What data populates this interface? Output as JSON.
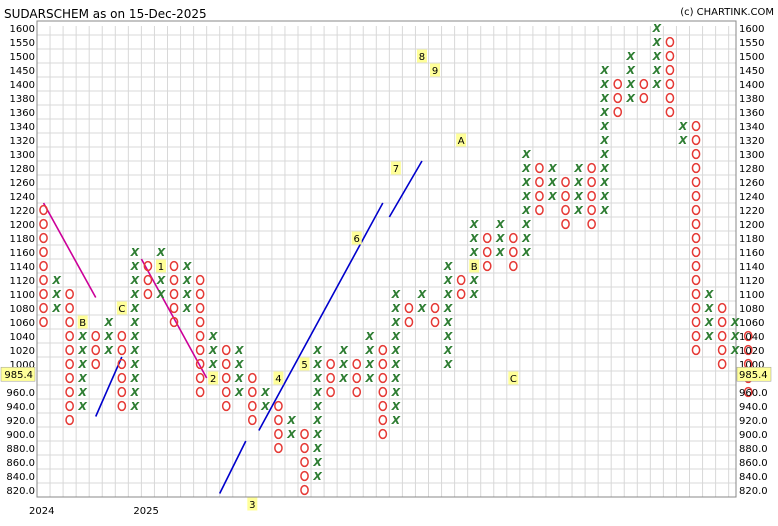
{
  "title": "SUDARSCHEM as on 15-Dec-2025",
  "credit": "(c) CHARTINK.COM",
  "chart_data": {
    "type": "point-and-figure",
    "grid": true,
    "y_levels": [
      820,
      840,
      860,
      880,
      900,
      920,
      940,
      960,
      980,
      1000,
      1020,
      1040,
      1060,
      1080,
      1100,
      1120,
      1140,
      1160,
      1180,
      1200,
      1220,
      1240,
      1260,
      1280,
      1300,
      1320,
      1340,
      1360,
      1380,
      1400,
      1450,
      1500,
      1550,
      1600
    ],
    "y_tick_labels": [
      "820.0",
      "840.0",
      "860.0",
      "880.0",
      "900.0",
      "920.0",
      "940.0",
      "960.0",
      "",
      "1000",
      "1020",
      "1040",
      "1060",
      "1080",
      "1100",
      "1120",
      "1140",
      "1160",
      "1180",
      "1200",
      "1220",
      "1240",
      "1260",
      "1280",
      "1300",
      "1320",
      "1340",
      "1360",
      "1380",
      "1400",
      "1450",
      "1500",
      "1550",
      "1600"
    ],
    "last_price": "985.4",
    "x_labels": [
      {
        "text": "2024",
        "column": 0
      },
      {
        "text": "2025",
        "column": 8
      }
    ],
    "columns": [
      {
        "type": "O",
        "from": 1060,
        "to": 1220
      },
      {
        "type": "X",
        "from": 1080,
        "to": 1120
      },
      {
        "type": "O",
        "from": 920,
        "to": 1100
      },
      {
        "type": "X",
        "from": 940,
        "to": 1060
      },
      {
        "type": "O",
        "from": 1000,
        "to": 1040
      },
      {
        "type": "X",
        "from": 1020,
        "to": 1060
      },
      {
        "type": "O",
        "from": 940,
        "to": 1040
      },
      {
        "type": "X",
        "from": 940,
        "to": 1160
      },
      {
        "type": "O",
        "from": 1100,
        "to": 1140
      },
      {
        "type": "X",
        "from": 1100,
        "to": 1160
      },
      {
        "type": "O",
        "from": 1060,
        "to": 1140
      },
      {
        "type": "X",
        "from": 1080,
        "to": 1140
      },
      {
        "type": "O",
        "from": 960,
        "to": 1120
      },
      {
        "type": "X",
        "from": 980,
        "to": 1040
      },
      {
        "type": "O",
        "from": 940,
        "to": 1020
      },
      {
        "type": "X",
        "from": 960,
        "to": 1020
      },
      {
        "type": "O",
        "from": 920,
        "to": 980
      },
      {
        "type": "X",
        "from": 940,
        "to": 960
      },
      {
        "type": "O",
        "from": 880,
        "to": 940
      },
      {
        "type": "X",
        "from": 900,
        "to": 920
      },
      {
        "type": "O",
        "from": 820,
        "to": 900
      },
      {
        "type": "X",
        "from": 840,
        "to": 1020
      },
      {
        "type": "O",
        "from": 960,
        "to": 1000
      },
      {
        "type": "X",
        "from": 980,
        "to": 1020
      },
      {
        "type": "O",
        "from": 960,
        "to": 1000
      },
      {
        "type": "X",
        "from": 980,
        "to": 1040
      },
      {
        "type": "O",
        "from": 900,
        "to": 1020
      },
      {
        "type": "X",
        "from": 920,
        "to": 1100
      },
      {
        "type": "O",
        "from": 1060,
        "to": 1080
      },
      {
        "type": "X",
        "from": 1080,
        "to": 1100
      },
      {
        "type": "O",
        "from": 1060,
        "to": 1080
      },
      {
        "type": "X",
        "from": 1000,
        "to": 1140
      },
      {
        "type": "O",
        "from": 1100,
        "to": 1120
      },
      {
        "type": "X",
        "from": 1100,
        "to": 1200
      },
      {
        "type": "O",
        "from": 1140,
        "to": 1180
      },
      {
        "type": "X",
        "from": 1160,
        "to": 1200
      },
      {
        "type": "O",
        "from": 1140,
        "to": 1180
      },
      {
        "type": "X",
        "from": 1160,
        "to": 1300
      },
      {
        "type": "O",
        "from": 1220,
        "to": 1280
      },
      {
        "type": "X",
        "from": 1240,
        "to": 1280
      },
      {
        "type": "O",
        "from": 1200,
        "to": 1260
      },
      {
        "type": "X",
        "from": 1220,
        "to": 1280
      },
      {
        "type": "O",
        "from": 1200,
        "to": 1280
      },
      {
        "type": "X",
        "from": 1220,
        "to": 1450
      },
      {
        "type": "O",
        "from": 1360,
        "to": 1400
      },
      {
        "type": "X",
        "from": 1380,
        "to": 1500
      },
      {
        "type": "O",
        "from": 1380,
        "to": 1400
      },
      {
        "type": "X",
        "from": 1400,
        "to": 1600
      },
      {
        "type": "O",
        "from": 1360,
        "to": 1550
      },
      {
        "type": "X",
        "from": 1320,
        "to": 1340
      },
      {
        "type": "O",
        "from": 1020,
        "to": 1340
      },
      {
        "type": "X",
        "from": 1040,
        "to": 1100
      },
      {
        "type": "O",
        "from": 1000,
        "to": 1080
      },
      {
        "type": "X",
        "from": 1020,
        "to": 1060
      },
      {
        "type": "O",
        "from": 960,
        "to": 1040
      }
    ],
    "month_markers": [
      {
        "text": "B",
        "column": 3,
        "level": 1060
      },
      {
        "text": "C",
        "column": 6,
        "level": 1080
      },
      {
        "text": "1",
        "column": 9,
        "level": 1140
      },
      {
        "text": "2",
        "column": 13,
        "level": 980
      },
      {
        "text": "3",
        "column": 16,
        "level": 800
      },
      {
        "text": "4",
        "column": 18,
        "level": 980
      },
      {
        "text": "5",
        "column": 20,
        "level": 1000
      },
      {
        "text": "6",
        "column": 24,
        "level": 1180
      },
      {
        "text": "7",
        "column": 27,
        "level": 1280
      },
      {
        "text": "8",
        "column": 29,
        "level": 1500
      },
      {
        "text": "9",
        "column": 30,
        "level": 1450
      },
      {
        "text": "A",
        "column": 32,
        "level": 1320
      },
      {
        "text": "B",
        "column": 33,
        "level": 1140
      },
      {
        "text": "C",
        "column": 36,
        "level": 980
      }
    ],
    "trendlines": [
      {
        "kind": "resistance",
        "color": "#cc0099",
        "from": {
          "column": 0,
          "level": 1230
        },
        "to": {
          "column": 4,
          "level": 1095
        }
      },
      {
        "kind": "resistance",
        "color": "#cc0099",
        "from": {
          "column": 7.5,
          "level": 1150
        },
        "to": {
          "column": 12.5,
          "level": 980
        }
      },
      {
        "kind": "support",
        "color": "#0000cc",
        "from": {
          "column": 4,
          "level": 925
        },
        "to": {
          "column": 6,
          "level": 1010
        }
      },
      {
        "kind": "support",
        "color": "#0000cc",
        "from": {
          "column": 13.5,
          "level": 815
        },
        "to": {
          "column": 15.5,
          "level": 890
        }
      },
      {
        "kind": "support",
        "color": "#0000cc",
        "from": {
          "column": 16.5,
          "level": 905
        },
        "to": {
          "column": 26,
          "level": 1230
        }
      },
      {
        "kind": "support",
        "color": "#0000cc",
        "from": {
          "column": 26.5,
          "level": 1210
        },
        "to": {
          "column": 29,
          "level": 1290
        }
      }
    ]
  }
}
